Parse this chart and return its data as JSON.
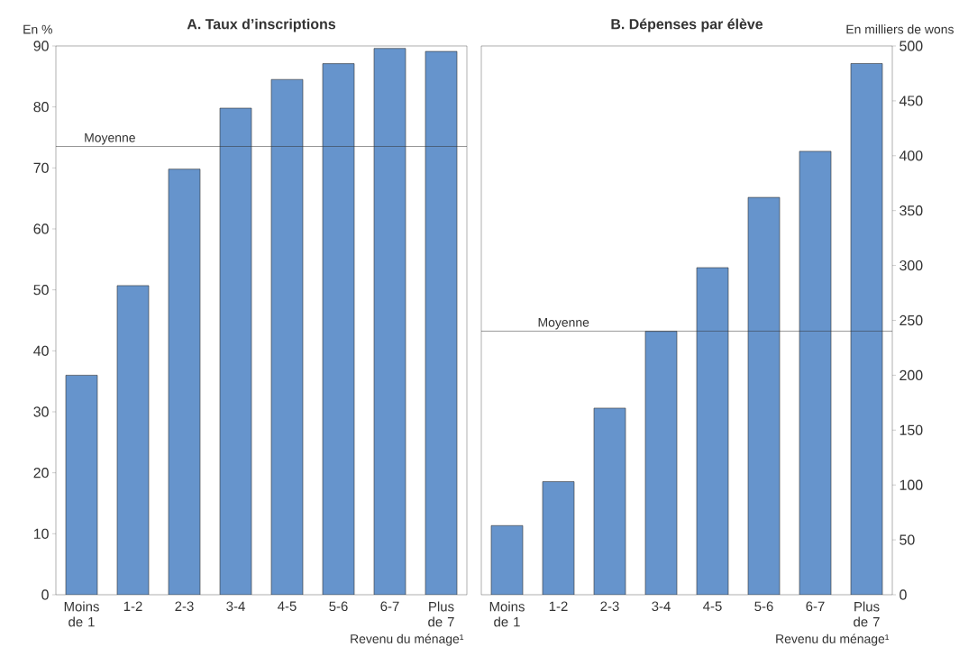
{
  "chart_data": [
    {
      "type": "bar",
      "title": "A. Taux d’inscriptions",
      "ylabel": "En %",
      "xlabel": "Revenu du ménage¹",
      "categories": [
        "Moins de 1",
        "1-2",
        "2-3",
        "3-4",
        "4-5",
        "5-6",
        "6-7",
        "Plus de 7"
      ],
      "series": [
        {
          "color": "#6694cc",
          "values": [
            36.0,
            50.7,
            69.8,
            79.8,
            84.5,
            87.1,
            89.6,
            89.1
          ]
        }
      ],
      "ylim": [
        0,
        90
      ],
      "yticks": [
        0,
        10,
        20,
        30,
        40,
        50,
        60,
        70,
        80,
        90
      ],
      "ref_lines": [
        {
          "axis": "y",
          "value": 73.5,
          "label": "Moyenne"
        }
      ]
    },
    {
      "type": "bar",
      "title": "B. Dépenses par élève",
      "y2label": "En milliers de wons",
      "xlabel": "Revenu du ménage¹",
      "categories": [
        "Moins de 1",
        "1-2",
        "2-3",
        "3-4",
        "4-5",
        "5-6",
        "6-7",
        "Plus de 7"
      ],
      "series": [
        {
          "color": "#6694cc",
          "axis": "y2",
          "values": [
            63,
            103,
            170,
            240,
            298,
            362,
            404,
            484
          ]
        }
      ],
      "y2lim": [
        0,
        500
      ],
      "y2ticks": [
        0,
        50,
        100,
        150,
        200,
        250,
        300,
        350,
        400,
        450,
        500
      ],
      "ref_lines": [
        {
          "axis": "y2",
          "value": 240,
          "label": "Moyenne"
        }
      ]
    }
  ]
}
